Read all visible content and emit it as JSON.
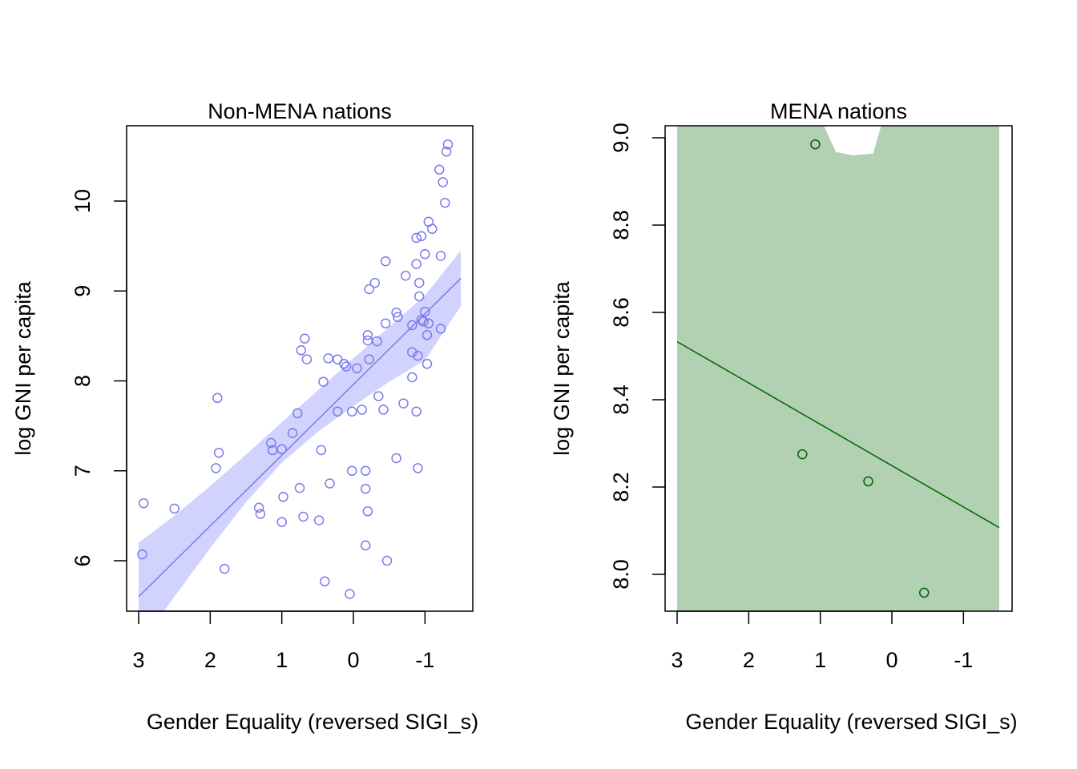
{
  "chart_data": [
    {
      "type": "scatter",
      "title": "Non-MENA nations",
      "xlabel": "Gender Equality (reversed SIGI_s)",
      "ylabel": "log GNI per capita",
      "xlim": [
        3.0,
        -1.5
      ],
      "ylim": [
        5.4,
        10.8
      ],
      "x_ticks": [
        3,
        2,
        1,
        0,
        -1
      ],
      "x_tick_labels": [
        "3",
        "2",
        "1",
        "0",
        "-1"
      ],
      "y_ticks": [
        6,
        7,
        8,
        9,
        10
      ],
      "y_tick_labels": [
        "6",
        "7",
        "8",
        "9",
        "10"
      ],
      "grid": false,
      "colors": {
        "points": "#7b7bea",
        "line": "#7b7bea",
        "band": "#d2d2ff"
      },
      "points": [
        {
          "x": -1.32,
          "y": 10.63
        },
        {
          "x": -1.3,
          "y": 10.55
        },
        {
          "x": -1.2,
          "y": 10.35
        },
        {
          "x": -1.25,
          "y": 10.21
        },
        {
          "x": -1.28,
          "y": 9.98
        },
        {
          "x": -1.05,
          "y": 9.77
        },
        {
          "x": -1.1,
          "y": 9.69
        },
        {
          "x": -0.95,
          "y": 9.61
        },
        {
          "x": -0.88,
          "y": 9.59
        },
        {
          "x": -1.0,
          "y": 9.41
        },
        {
          "x": -1.22,
          "y": 9.39
        },
        {
          "x": -0.88,
          "y": 9.3
        },
        {
          "x": -0.45,
          "y": 9.33
        },
        {
          "x": -0.73,
          "y": 9.17
        },
        {
          "x": -0.3,
          "y": 9.09
        },
        {
          "x": -0.92,
          "y": 9.09
        },
        {
          "x": -0.22,
          "y": 9.02
        },
        {
          "x": -0.92,
          "y": 8.94
        },
        {
          "x": -1.0,
          "y": 8.77
        },
        {
          "x": -0.6,
          "y": 8.76
        },
        {
          "x": -0.62,
          "y": 8.71
        },
        {
          "x": -0.95,
          "y": 8.68
        },
        {
          "x": -0.98,
          "y": 8.66
        },
        {
          "x": -0.45,
          "y": 8.64
        },
        {
          "x": -1.05,
          "y": 8.64
        },
        {
          "x": -0.82,
          "y": 8.62
        },
        {
          "x": -1.22,
          "y": 8.58
        },
        {
          "x": -1.03,
          "y": 8.51
        },
        {
          "x": -0.2,
          "y": 8.51
        },
        {
          "x": -0.2,
          "y": 8.45
        },
        {
          "x": -0.33,
          "y": 8.44
        },
        {
          "x": 0.68,
          "y": 8.47
        },
        {
          "x": 0.73,
          "y": 8.34
        },
        {
          "x": -0.82,
          "y": 8.32
        },
        {
          "x": -0.9,
          "y": 8.28
        },
        {
          "x": 0.65,
          "y": 8.24
        },
        {
          "x": 0.35,
          "y": 8.25
        },
        {
          "x": 0.22,
          "y": 8.24
        },
        {
          "x": -0.22,
          "y": 8.24
        },
        {
          "x": 0.13,
          "y": 8.19
        },
        {
          "x": 0.1,
          "y": 8.16
        },
        {
          "x": -1.03,
          "y": 8.19
        },
        {
          "x": -0.05,
          "y": 8.14
        },
        {
          "x": -0.82,
          "y": 8.04
        },
        {
          "x": 0.42,
          "y": 7.99
        },
        {
          "x": -0.35,
          "y": 7.83
        },
        {
          "x": 1.9,
          "y": 7.81
        },
        {
          "x": -0.7,
          "y": 7.75
        },
        {
          "x": -0.42,
          "y": 7.68
        },
        {
          "x": -0.12,
          "y": 7.68
        },
        {
          "x": 0.22,
          "y": 7.66
        },
        {
          "x": 0.02,
          "y": 7.66
        },
        {
          "x": -0.88,
          "y": 7.66
        },
        {
          "x": 0.78,
          "y": 7.64
        },
        {
          "x": 0.85,
          "y": 7.42
        },
        {
          "x": 1.15,
          "y": 7.31
        },
        {
          "x": 1.0,
          "y": 7.24
        },
        {
          "x": 1.13,
          "y": 7.23
        },
        {
          "x": 0.45,
          "y": 7.23
        },
        {
          "x": 1.88,
          "y": 7.2
        },
        {
          "x": -0.6,
          "y": 7.14
        },
        {
          "x": 1.92,
          "y": 7.03
        },
        {
          "x": -0.9,
          "y": 7.03
        },
        {
          "x": 0.02,
          "y": 7.0
        },
        {
          "x": -0.17,
          "y": 7.0
        },
        {
          "x": 0.33,
          "y": 6.86
        },
        {
          "x": 0.75,
          "y": 6.81
        },
        {
          "x": -0.17,
          "y": 6.8
        },
        {
          "x": 0.98,
          "y": 6.71
        },
        {
          "x": 2.93,
          "y": 6.64
        },
        {
          "x": 2.5,
          "y": 6.58
        },
        {
          "x": 1.32,
          "y": 6.59
        },
        {
          "x": -0.2,
          "y": 6.55
        },
        {
          "x": 1.3,
          "y": 6.52
        },
        {
          "x": 0.7,
          "y": 6.49
        },
        {
          "x": 0.48,
          "y": 6.45
        },
        {
          "x": 1.0,
          "y": 6.43
        },
        {
          "x": -0.17,
          "y": 6.17
        },
        {
          "x": 2.95,
          "y": 6.07
        },
        {
          "x": -0.47,
          "y": 6.0
        },
        {
          "x": 1.8,
          "y": 5.91
        },
        {
          "x": 0.4,
          "y": 5.77
        },
        {
          "x": 0.05,
          "y": 5.63
        }
      ],
      "fit_line": {
        "x": [
          3.0,
          -1.5
        ],
        "y": [
          5.6,
          9.14
        ]
      },
      "confidence_band": {
        "x": [
          3.0,
          2.5,
          2.0,
          1.5,
          1.0,
          0.5,
          0.0,
          -0.5,
          -1.0,
          -1.5
        ],
        "lower": [
          5.05,
          5.6,
          6.14,
          6.65,
          7.09,
          7.43,
          7.72,
          7.99,
          8.23,
          8.83
        ],
        "upper": [
          6.2,
          6.5,
          6.83,
          7.18,
          7.54,
          7.89,
          8.25,
          8.6,
          8.95,
          9.45
        ]
      }
    },
    {
      "type": "scatter",
      "title": "MENA nations",
      "xlabel": "Gender Equality (reversed SIGI_s)",
      "ylabel": "log GNI per capita",
      "xlim": [
        3.0,
        -1.5
      ],
      "ylim": [
        7.92,
        9.03
      ],
      "x_ticks": [
        3,
        2,
        1,
        0,
        -1
      ],
      "x_tick_labels": [
        "3",
        "2",
        "1",
        "0",
        "-1"
      ],
      "y_ticks": [
        8.0,
        8.2,
        8.4,
        8.6,
        8.8,
        9.0
      ],
      "y_tick_labels": [
        "8.0",
        "8.2",
        "8.4",
        "8.6",
        "8.8",
        "9.0"
      ],
      "grid": false,
      "colors": {
        "points": "#006400",
        "line": "#006400",
        "band": "#b2d1b2"
      },
      "points": [
        {
          "x": 1.07,
          "y": 8.985
        },
        {
          "x": 1.25,
          "y": 8.275
        },
        {
          "x": 0.33,
          "y": 8.213
        },
        {
          "x": -0.45,
          "y": 7.958
        }
      ],
      "fit_line": {
        "x": [
          3.0,
          -1.5
        ],
        "y": [
          8.533,
          8.107
        ]
      },
      "confidence_band": {
        "covers_full_plot": true,
        "upper_gap_x": [
          0.95,
          0.15
        ],
        "upper_gap_ylow": 8.96
      }
    }
  ]
}
